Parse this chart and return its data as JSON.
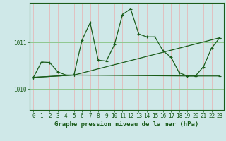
{
  "xlabel": "Graphe pression niveau de la mer (hPa)",
  "bg_color": "#cfe8e8",
  "line_color": "#1a5c1a",
  "grid_color_v": "#e8b0b0",
  "grid_color_h": "#90c890",
  "xmin": -0.5,
  "xmax": 23.5,
  "ymin": 1009.55,
  "ymax": 1011.85,
  "yticks": [
    1010,
    1011
  ],
  "xticks": [
    0,
    1,
    2,
    3,
    4,
    5,
    6,
    7,
    8,
    9,
    10,
    11,
    12,
    13,
    14,
    15,
    16,
    17,
    18,
    19,
    20,
    21,
    22,
    23
  ],
  "series1_x": [
    0,
    1,
    2,
    3,
    4,
    5,
    6,
    7,
    8,
    9,
    10,
    11,
    12,
    13,
    14,
    15,
    16,
    17,
    18,
    19,
    20,
    21,
    22,
    23
  ],
  "series1_y": [
    1010.25,
    1010.58,
    1010.57,
    1010.37,
    1010.3,
    1010.3,
    1011.05,
    1011.42,
    1010.62,
    1010.6,
    1010.95,
    1011.6,
    1011.72,
    1011.18,
    1011.12,
    1011.12,
    1010.82,
    1010.68,
    1010.35,
    1010.28,
    1010.28,
    1010.48,
    1010.88,
    1011.1
  ],
  "series2_x": [
    0,
    5,
    23
  ],
  "series2_y": [
    1010.25,
    1010.3,
    1011.1
  ],
  "series3_x": [
    0,
    5,
    19,
    20,
    23
  ],
  "series3_y": [
    1010.25,
    1010.3,
    1010.28,
    1010.28,
    1010.28
  ],
  "marker": "+",
  "markersize": 3,
  "linewidth": 0.9,
  "tick_fontsize": 5.5,
  "label_fontsize": 6.5
}
